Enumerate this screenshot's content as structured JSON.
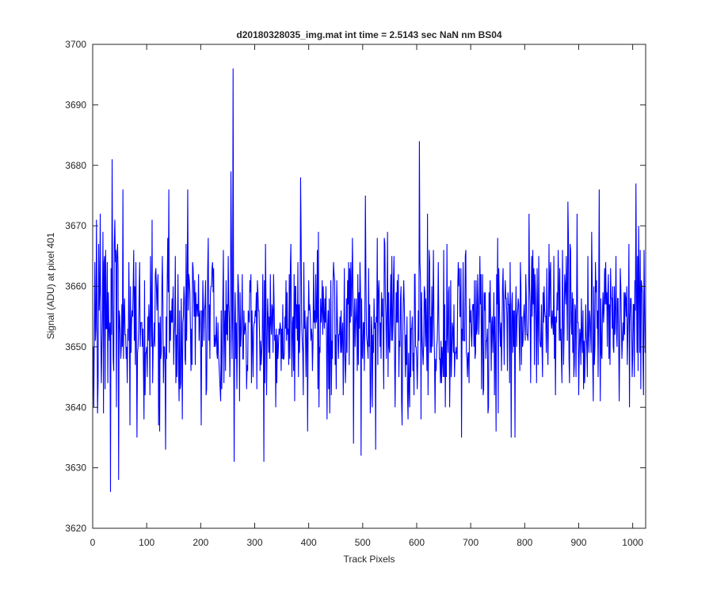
{
  "chart_data": {
    "type": "line",
    "title": "d20180328035_img.mat int time = 2.5143 sec  NaN nm BS04",
    "xlabel": "Track Pixels",
    "ylabel": "Signal (ADU) at pixel 401",
    "xlim": [
      0,
      1024
    ],
    "ylim": [
      3620,
      3700
    ],
    "xticks": [
      0,
      100,
      200,
      300,
      400,
      500,
      600,
      700,
      800,
      900,
      1000
    ],
    "yticks": [
      3620,
      3630,
      3640,
      3650,
      3660,
      3670,
      3680,
      3690,
      3700
    ],
    "grid": false,
    "legend": "none",
    "series": [
      {
        "color": "#0000ff",
        "x_start": 1,
        "x_step": 1,
        "n_points": 1024,
        "baseline": 3654,
        "spread": 7,
        "spikes": [
          {
            "x": 2,
            "y": 3640
          },
          {
            "x": 9,
            "y": 3639
          },
          {
            "x": 14,
            "y": 3672
          },
          {
            "x": 33,
            "y": 3626
          },
          {
            "x": 36,
            "y": 3681
          },
          {
            "x": 41,
            "y": 3671
          },
          {
            "x": 48,
            "y": 3628
          },
          {
            "x": 56,
            "y": 3676
          },
          {
            "x": 82,
            "y": 3635
          },
          {
            "x": 124,
            "y": 3636
          },
          {
            "x": 135,
            "y": 3633
          },
          {
            "x": 141,
            "y": 3676
          },
          {
            "x": 176,
            "y": 3676
          },
          {
            "x": 256,
            "y": 3679
          },
          {
            "x": 260,
            "y": 3696
          },
          {
            "x": 262,
            "y": 3631
          },
          {
            "x": 317,
            "y": 3631
          },
          {
            "x": 385,
            "y": 3678
          },
          {
            "x": 483,
            "y": 3634
          },
          {
            "x": 497,
            "y": 3632
          },
          {
            "x": 505,
            "y": 3675
          },
          {
            "x": 524,
            "y": 3633
          },
          {
            "x": 605,
            "y": 3684
          },
          {
            "x": 683,
            "y": 3635
          },
          {
            "x": 775,
            "y": 3635
          },
          {
            "x": 782,
            "y": 3635
          },
          {
            "x": 880,
            "y": 3674
          },
          {
            "x": 938,
            "y": 3676
          },
          {
            "x": 1006,
            "y": 3677
          },
          {
            "x": 1020,
            "y": 3642
          }
        ]
      }
    ]
  }
}
